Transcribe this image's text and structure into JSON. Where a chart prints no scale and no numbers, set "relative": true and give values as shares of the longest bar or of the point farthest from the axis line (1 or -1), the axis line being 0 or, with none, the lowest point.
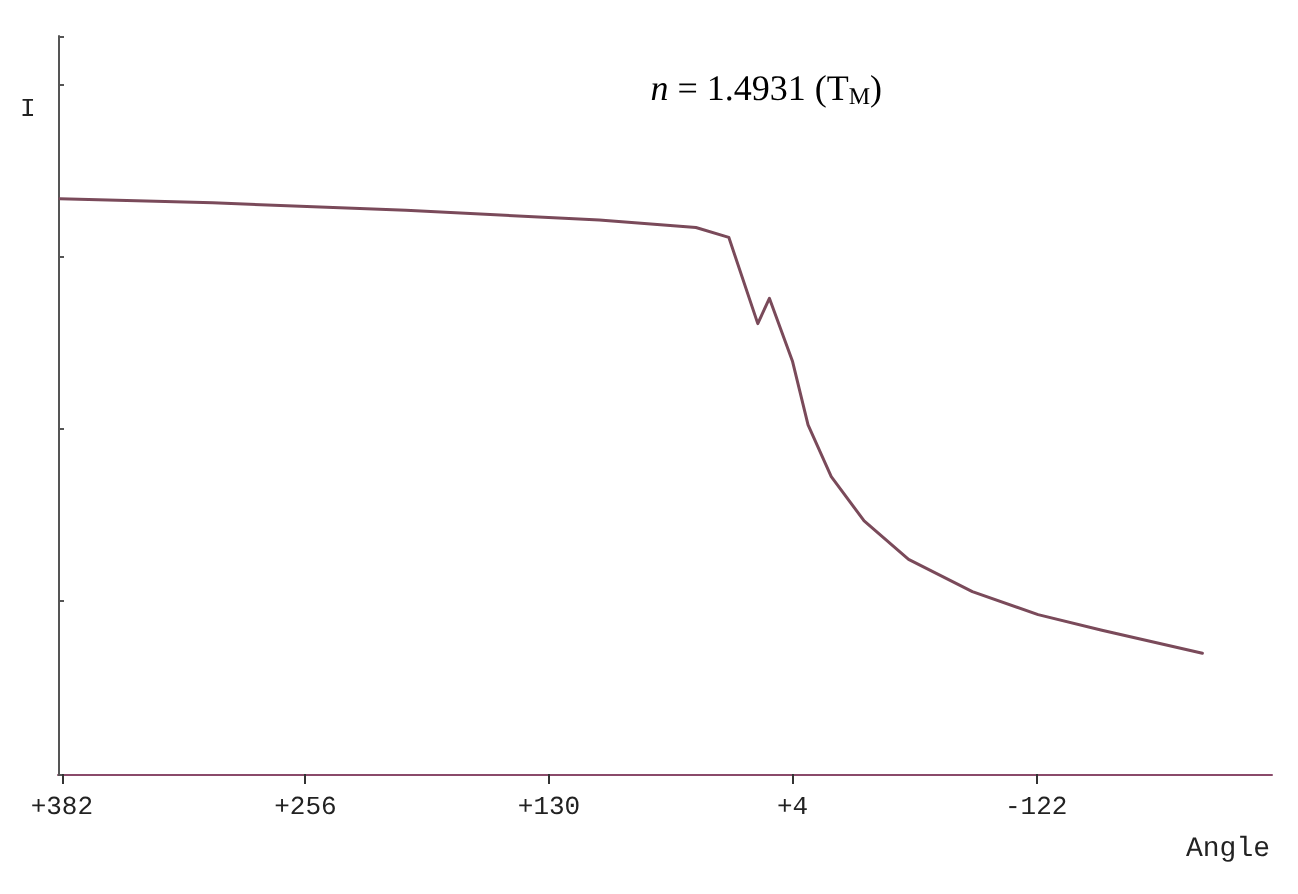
{
  "chart_data": {
    "type": "line",
    "relative": true,
    "xlabel": "Angle",
    "ylabel": "I",
    "annotations": [
      "n = 1.4931 (T$_{M}$)"
    ],
    "xlim": [
      384,
      -244
    ],
    "xticks": [
      {
        "value": 382,
        "label": "+382"
      },
      {
        "value": 256,
        "label": "+256"
      },
      {
        "value": 130,
        "label": "+130"
      },
      {
        "value": 4,
        "label": "+4"
      },
      -122
    ],
    "x": [
      383,
      304,
      204,
      104,
      54,
      37,
      22,
      16,
      4,
      -4,
      -16,
      -33,
      -56,
      -89,
      -123,
      -156,
      -208
    ],
    "series": [
      {
        "color": "#7a4a5a",
        "values": [
          1.0,
          0.993,
          0.98,
          0.963,
          0.95,
          0.933,
          0.783,
          0.827,
          0.717,
          0.607,
          0.517,
          0.44,
          0.373,
          0.317,
          0.277,
          0.25,
          0.21
        ]
      }
    ],
    "grid": false,
    "marker": "none",
    "line_style": "solid"
  }
}
